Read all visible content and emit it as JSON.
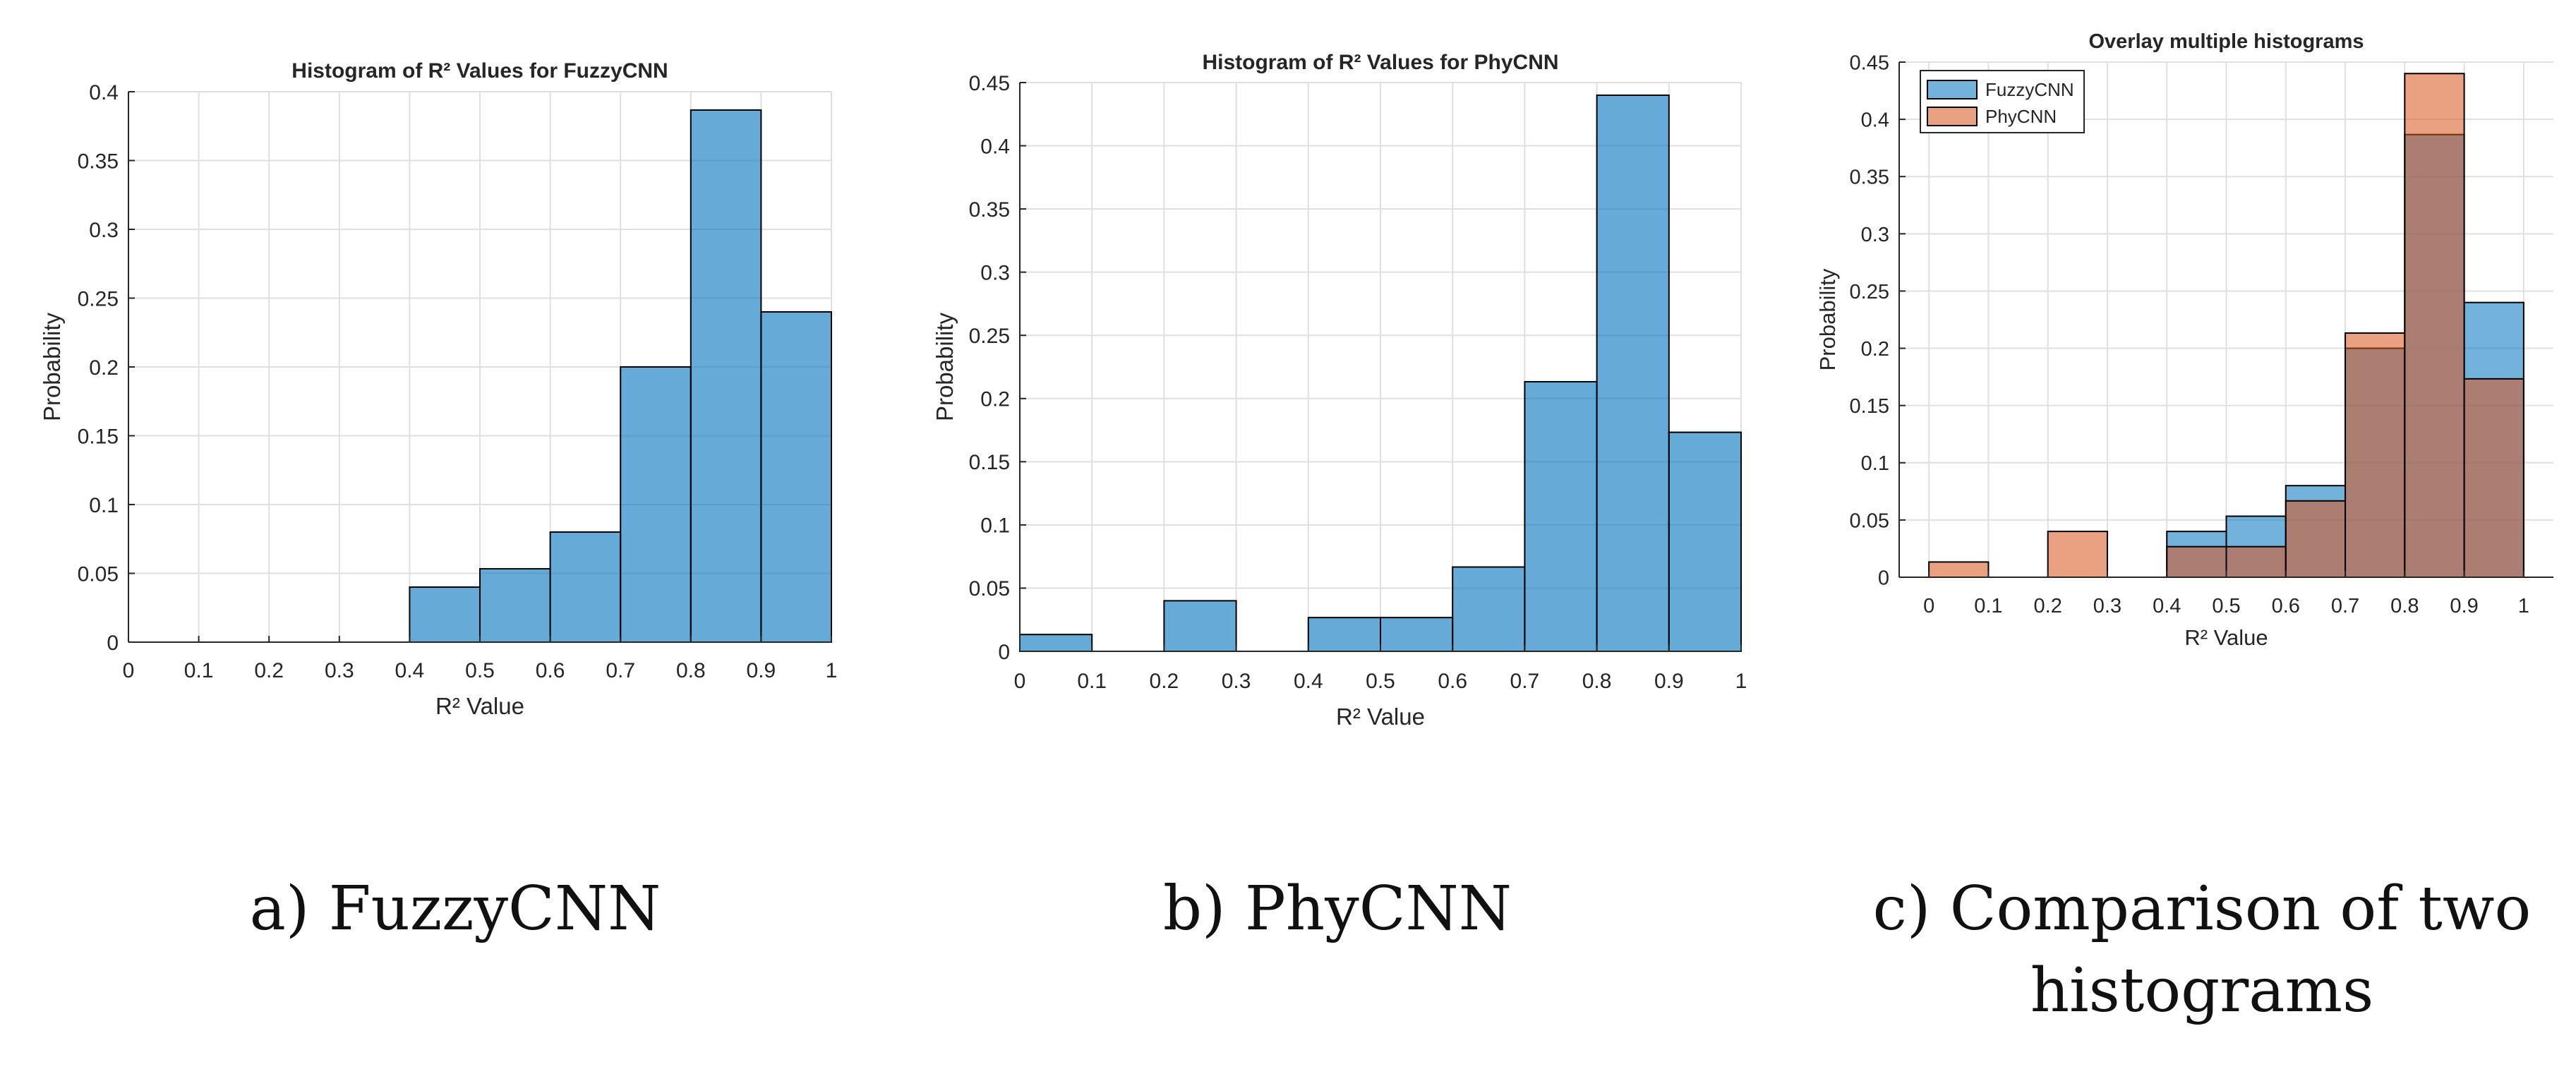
{
  "colors": {
    "fuzzy": "#0072BD",
    "phy": "#D95319",
    "edge": "#000000",
    "grid": "#DFDFDF",
    "axis": "#262626"
  },
  "captions": {
    "a": "a) FuzzyCNN",
    "b": "b) PhyCNN",
    "c_line1": "c) Comparison of two",
    "c_line2": "histograms"
  },
  "chart_data": [
    {
      "type": "bar",
      "title": "Histogram of R² Values for FuzzyCNN",
      "xlabel": "R² Value",
      "ylabel": "Probability",
      "bin_edges": [
        0,
        0.1,
        0.2,
        0.3,
        0.4,
        0.5,
        0.6,
        0.7,
        0.8,
        0.9,
        1
      ],
      "xlim": [
        0,
        1
      ],
      "ylim": [
        0,
        0.4
      ],
      "xticks": [
        "0",
        "0.1",
        "0.2",
        "0.3",
        "0.4",
        "0.5",
        "0.6",
        "0.7",
        "0.8",
        "0.9",
        "1"
      ],
      "yticks": [
        "0",
        "0.05",
        "0.1",
        "0.15",
        "0.2",
        "0.25",
        "0.3",
        "0.35",
        "0.4"
      ],
      "grid": true,
      "series": [
        {
          "name": "FuzzyCNN",
          "color_key": "fuzzy",
          "values": [
            0,
            0,
            0,
            0,
            0.04,
            0.0533,
            0.08,
            0.2,
            0.3867,
            0.24
          ]
        }
      ]
    },
    {
      "type": "bar",
      "title": "Histogram of R² Values for PhyCNN",
      "xlabel": "R² Value",
      "ylabel": "Probability",
      "bin_edges": [
        0,
        0.1,
        0.2,
        0.3,
        0.4,
        0.5,
        0.6,
        0.7,
        0.8,
        0.9,
        1
      ],
      "xlim": [
        0,
        1
      ],
      "ylim": [
        0,
        0.45
      ],
      "xticks": [
        "0",
        "0.1",
        "0.2",
        "0.3",
        "0.4",
        "0.5",
        "0.6",
        "0.7",
        "0.8",
        "0.9",
        "1"
      ],
      "yticks": [
        "0",
        "0.05",
        "0.1",
        "0.15",
        "0.2",
        "0.25",
        "0.3",
        "0.35",
        "0.4",
        "0.45"
      ],
      "grid": true,
      "series": [
        {
          "name": "PhyCNN",
          "color_key": "fuzzy",
          "values": [
            0.0133,
            0,
            0.04,
            0,
            0.0267,
            0.0267,
            0.0667,
            0.2133,
            0.44,
            0.1733
          ]
        }
      ]
    },
    {
      "type": "bar",
      "title": "Overlay multiple histograms",
      "xlabel": "R² Value",
      "ylabel": "Probability",
      "bin_edges": [
        0,
        0.1,
        0.2,
        0.3,
        0.4,
        0.5,
        0.6,
        0.7,
        0.8,
        0.9,
        1
      ],
      "xlim": [
        -0.05,
        1.05
      ],
      "ylim": [
        0,
        0.45
      ],
      "xticks": [
        "0",
        "0.1",
        "0.2",
        "0.3",
        "0.4",
        "0.5",
        "0.6",
        "0.7",
        "0.8",
        "0.9",
        "1"
      ],
      "yticks": [
        "0",
        "0.05",
        "0.1",
        "0.15",
        "0.2",
        "0.25",
        "0.3",
        "0.35",
        "0.4",
        "0.45"
      ],
      "grid": true,
      "overlay": true,
      "legend": "top-left",
      "series": [
        {
          "name": "FuzzyCNN",
          "color_key": "fuzzy",
          "values": [
            0,
            0,
            0,
            0,
            0.04,
            0.0533,
            0.08,
            0.2,
            0.3867,
            0.24
          ]
        },
        {
          "name": "PhyCNN",
          "color_key": "phy",
          "values": [
            0.0133,
            0,
            0.04,
            0,
            0.0267,
            0.0267,
            0.0667,
            0.2133,
            0.44,
            0.1733
          ]
        }
      ]
    }
  ]
}
